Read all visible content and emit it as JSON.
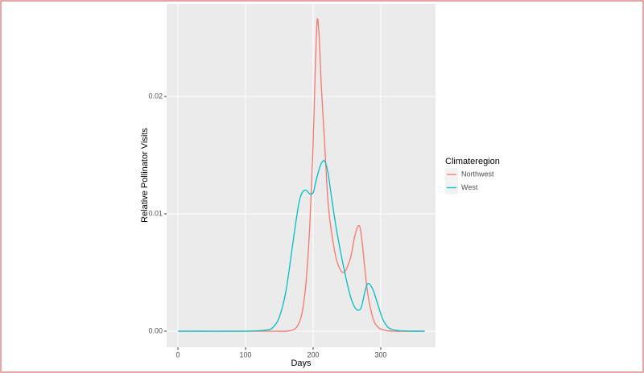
{
  "chart_data": {
    "type": "line",
    "x_label": "Days",
    "y_label": "Relative Pollinator Visits",
    "legend_title": "Climateregion",
    "legend_position": "right",
    "grid": true,
    "x": [
      0,
      100,
      130,
      140,
      150,
      160,
      170,
      175,
      180,
      185,
      190,
      195,
      200,
      203,
      206,
      209,
      212,
      217,
      222,
      227,
      235,
      245,
      255,
      262,
      268,
      272,
      280,
      288,
      295,
      305,
      320,
      365
    ],
    "series": [
      {
        "name": "Northwest",
        "color": "#F8766D",
        "values": [
          0,
          0,
          0,
          0,
          0,
          0,
          0.0001,
          0.0003,
          0.0008,
          0.002,
          0.0045,
          0.009,
          0.016,
          0.022,
          0.0265,
          0.025,
          0.021,
          0.016,
          0.011,
          0.0085,
          0.006,
          0.005,
          0.0062,
          0.0082,
          0.009,
          0.0078,
          0.0035,
          0.0012,
          0.0004,
          0.0001,
          0,
          0
        ]
      },
      {
        "name": "West",
        "color": "#00BFC4",
        "values": [
          0,
          0,
          0.0001,
          0.0003,
          0.0012,
          0.0035,
          0.0075,
          0.0095,
          0.0112,
          0.0119,
          0.012,
          0.0117,
          0.0118,
          0.0125,
          0.0132,
          0.0138,
          0.0143,
          0.0145,
          0.0135,
          0.0115,
          0.0085,
          0.0055,
          0.003,
          0.002,
          0.0018,
          0.0022,
          0.004,
          0.0036,
          0.0024,
          0.0008,
          0.0001,
          0
        ]
      }
    ],
    "xlim": [
      -16.7,
      381
    ],
    "xticks": [
      0,
      100,
      200,
      300
    ],
    "ylim": [
      -0.00137,
      0.02788
    ],
    "yticks": [
      {
        "value": 0,
        "label": "0.00"
      },
      {
        "value": 0.01,
        "label": "0.01"
      },
      {
        "value": 0.02,
        "label": "0.02"
      }
    ]
  }
}
